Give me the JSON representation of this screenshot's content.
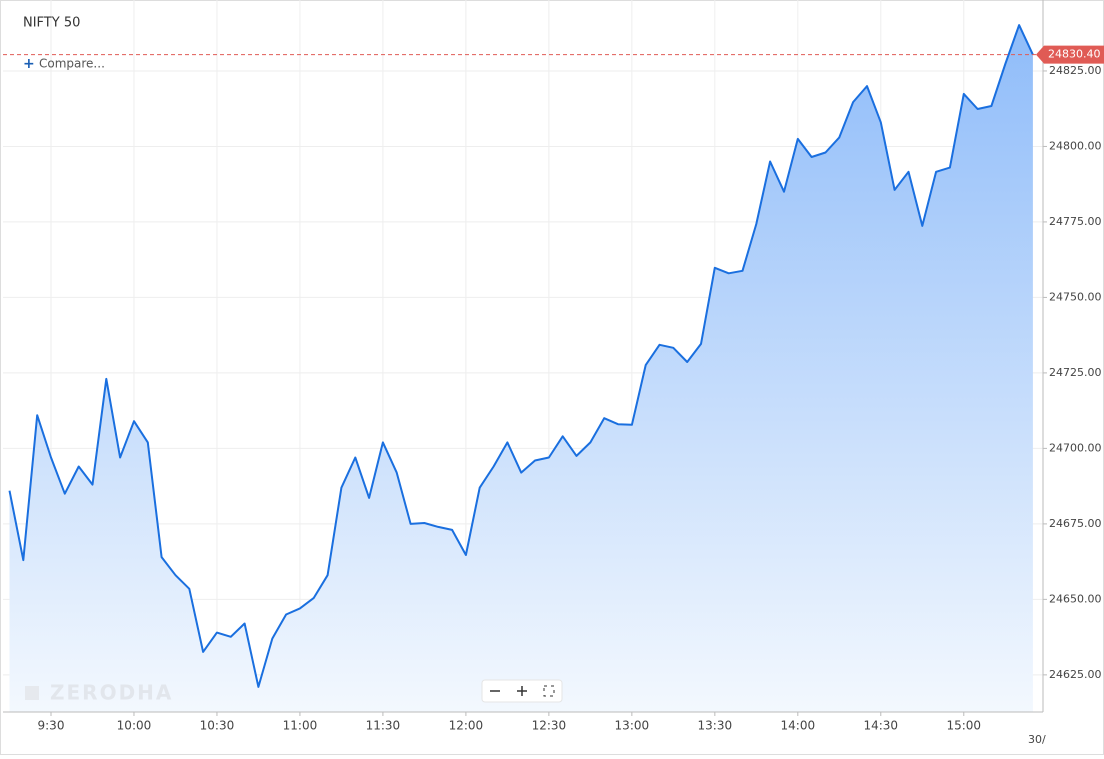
{
  "chart_data": {
    "type": "area",
    "title": "NIFTY 50",
    "compare_label": "Compare...",
    "watermark": "ZERODHA",
    "date_label": "30/",
    "x": [
      "9:15",
      "9:20",
      "9:25",
      "9:30",
      "9:35",
      "9:40",
      "9:45",
      "9:50",
      "9:55",
      "10:00",
      "10:05",
      "10:10",
      "10:15",
      "10:20",
      "10:25",
      "10:30",
      "10:35",
      "10:40",
      "10:45",
      "10:50",
      "10:55",
      "11:00",
      "11:05",
      "11:10",
      "11:15",
      "11:20",
      "11:25",
      "11:30",
      "11:35",
      "11:40",
      "11:45",
      "11:50",
      "11:55",
      "12:00",
      "12:05",
      "12:10",
      "12:15",
      "12:20",
      "12:25",
      "12:30",
      "12:35",
      "12:40",
      "12:45",
      "12:50",
      "12:55",
      "13:00",
      "13:05",
      "13:10",
      "13:15",
      "13:20",
      "13:25",
      "13:30",
      "13:35",
      "13:40",
      "13:45",
      "13:50",
      "13:55",
      "14:00",
      "14:05",
      "14:10",
      "14:15",
      "14:20",
      "14:25",
      "14:30",
      "14:35",
      "14:40",
      "14:45",
      "14:50",
      "14:55",
      "15:00",
      "15:05",
      "15:10",
      "15:15",
      "15:20",
      "15:25"
    ],
    "series": [
      {
        "name": "NIFTY 50",
        "color": "#1a6fdf",
        "values": [
          24686,
          24663,
          24711,
          24697,
          24685,
          24694,
          24688,
          24723,
          24697,
          24709,
          24702,
          24664,
          24658,
          24653.5,
          24632.6,
          24639,
          24637.6,
          24642,
          24621,
          24637,
          24645,
          24647,
          24650.5,
          24658,
          24687,
          24697,
          24683.6,
          24702,
          24692,
          24675,
          24675.3,
          24674,
          24673,
          24664.7,
          24687,
          24694,
          24702,
          24692,
          24696,
          24697,
          24704,
          24697.5,
          24702,
          24710,
          24708,
          24707.8,
          24727.6,
          24734.3,
          24733.3,
          24728.6,
          24734.6,
          24759.8,
          24758,
          24758.8,
          24774.3,
          24795,
          24785,
          24802.5,
          24796.5,
          24798,
          24803,
          24814.7,
          24820,
          24808,
          24785.6,
          24791.6,
          24773.7,
          24791.6,
          24793,
          24817.4,
          24812.4,
          24813.4,
          24827.3,
          24840.2,
          24830.4
        ]
      }
    ],
    "last_price": 24830.4,
    "last_price_label": "24830.40",
    "last_price_color": "#e05b55",
    "ylim": [
      24612.7,
      24848.5
    ],
    "yticks": [
      {
        "value": 24625,
        "label": "24625.00"
      },
      {
        "value": 24650,
        "label": "24650.00"
      },
      {
        "value": 24675,
        "label": "24675.00"
      },
      {
        "value": 24700,
        "label": "24700.00"
      },
      {
        "value": 24725,
        "label": "24725.00"
      },
      {
        "value": 24750,
        "label": "24750.00"
      },
      {
        "value": 24775,
        "label": "24775.00"
      },
      {
        "value": 24800,
        "label": "24800.00"
      },
      {
        "value": 24825,
        "label": "24825.00"
      }
    ],
    "xticks": [
      "9:30",
      "10:00",
      "10:30",
      "11:00",
      "11:30",
      "12:00",
      "12:30",
      "13:00",
      "13:30",
      "14:00",
      "14:30",
      "15:00"
    ],
    "grid": true
  }
}
